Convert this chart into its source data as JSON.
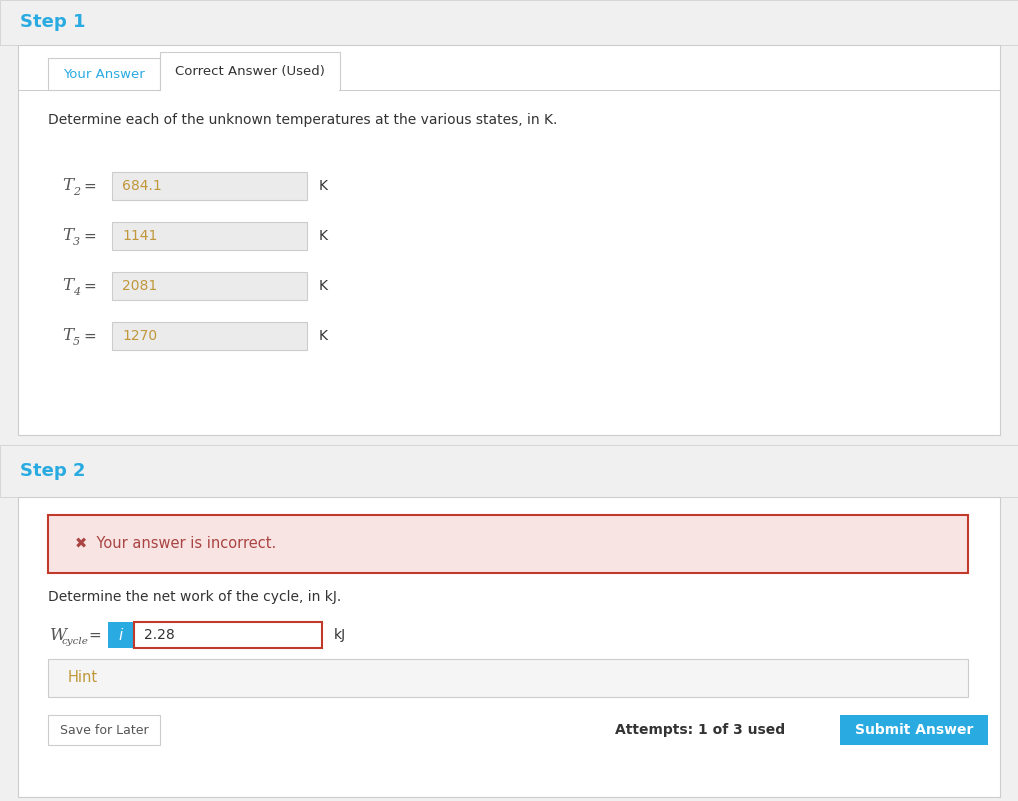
{
  "bg_color": "#f0f0f0",
  "white": "#ffffff",
  "step1_label": "Step 1",
  "step2_label": "Step 2",
  "step_color": "#29abe2",
  "tab_your_answer": "Your Answer",
  "tab_correct_answer": "Correct Answer (Used)",
  "step1_question": "Determine each of the unknown temperatures at the various states, in K.",
  "rows": [
    {
      "label": "T",
      "sub": "2",
      "value": "684.1",
      "unit": "K"
    },
    {
      "label": "T",
      "sub": "3",
      "value": "1141",
      "unit": "K"
    },
    {
      "label": "T",
      "sub": "4",
      "value": "2081",
      "unit": "K"
    },
    {
      "label": "T",
      "sub": "5",
      "value": "1270",
      "unit": "K"
    }
  ],
  "error_text": "✖  Your answer is incorrect.",
  "error_bg": "#f9e4e4",
  "error_border": "#c0392b",
  "error_text_color": "#a94442",
  "step2_question": "Determine the net work of the cycle, in kJ.",
  "wcycle_value": "2.28",
  "wcycle_unit": "kJ",
  "info_btn_color": "#29abe2",
  "hint_label": "Hint",
  "hint_bg": "#f5f5f5",
  "hint_border": "#cccccc",
  "hint_text_color": "#c0973a",
  "save_btn_label": "Save for Later",
  "attempts_text": "Attempts: 1 of 3 used",
  "submit_btn_label": "Submit Answer",
  "submit_btn_color": "#29abe2",
  "input_bg": "#ebebeb",
  "input_border": "#cccccc",
  "value_color": "#c0973a",
  "wcycle_input_border": "#c0392b",
  "dark_text": "#333333",
  "body_text_color": "#555555",
  "border_color": "#cccccc",
  "step_header_bg": "#f0f0f0"
}
